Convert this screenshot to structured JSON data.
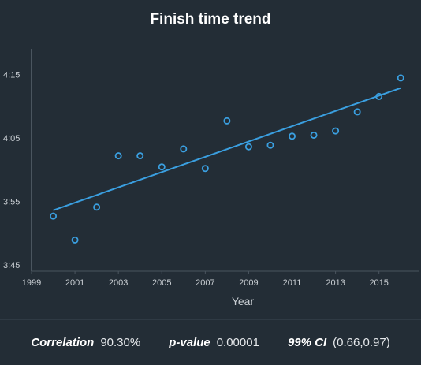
{
  "chart_data": {
    "type": "scatter",
    "title": "Finish time trend",
    "xlabel": "Year",
    "ylabel": "",
    "xlim": [
      1999,
      2016.5
    ],
    "ylim": [
      "3:45",
      "4:20"
    ],
    "x_ticks": [
      "1999",
      "2001",
      "2003",
      "2005",
      "2007",
      "2009",
      "2011",
      "2013",
      "2015"
    ],
    "y_ticks": [
      "3:45",
      "3:55",
      "4:05",
      "4:15"
    ],
    "grid": false,
    "legend": "none",
    "series": [
      {
        "color": "#3a9fe0",
        "points": [
          {
            "x": 2000,
            "y": "3:53:40"
          },
          {
            "x": 2001,
            "y": "3:49:55"
          },
          {
            "x": 2002,
            "y": "3:55:05"
          },
          {
            "x": 2003,
            "y": "4:03:10"
          },
          {
            "x": 2004,
            "y": "4:03:10"
          },
          {
            "x": 2005,
            "y": "4:01:25"
          },
          {
            "x": 2006,
            "y": "4:04:15"
          },
          {
            "x": 2007,
            "y": "4:01:10"
          },
          {
            "x": 2008,
            "y": "4:08:40"
          },
          {
            "x": 2009,
            "y": "4:04:35"
          },
          {
            "x": 2010,
            "y": "4:04:50"
          },
          {
            "x": 2011,
            "y": "4:06:15"
          },
          {
            "x": 2012,
            "y": "4:06:25"
          },
          {
            "x": 2013,
            "y": "4:07:05"
          },
          {
            "x": 2014,
            "y": "4:10:05"
          },
          {
            "x": 2015,
            "y": "4:12:30"
          },
          {
            "x": 2016,
            "y": "4:15:25"
          }
        ]
      }
    ],
    "trendline": {
      "color": "#3a9fe0",
      "start": {
        "x": 2000,
        "y": "3:54:35"
      },
      "end": {
        "x": 2016,
        "y": "4:13:50"
      }
    }
  },
  "stats": {
    "correlation_label": "Correlation",
    "correlation_value": "90.30%",
    "pvalue_label": "p-value",
    "pvalue_value": "0.00001",
    "ci_label": "99% CI",
    "ci_value": "(0.66,0.97)"
  }
}
